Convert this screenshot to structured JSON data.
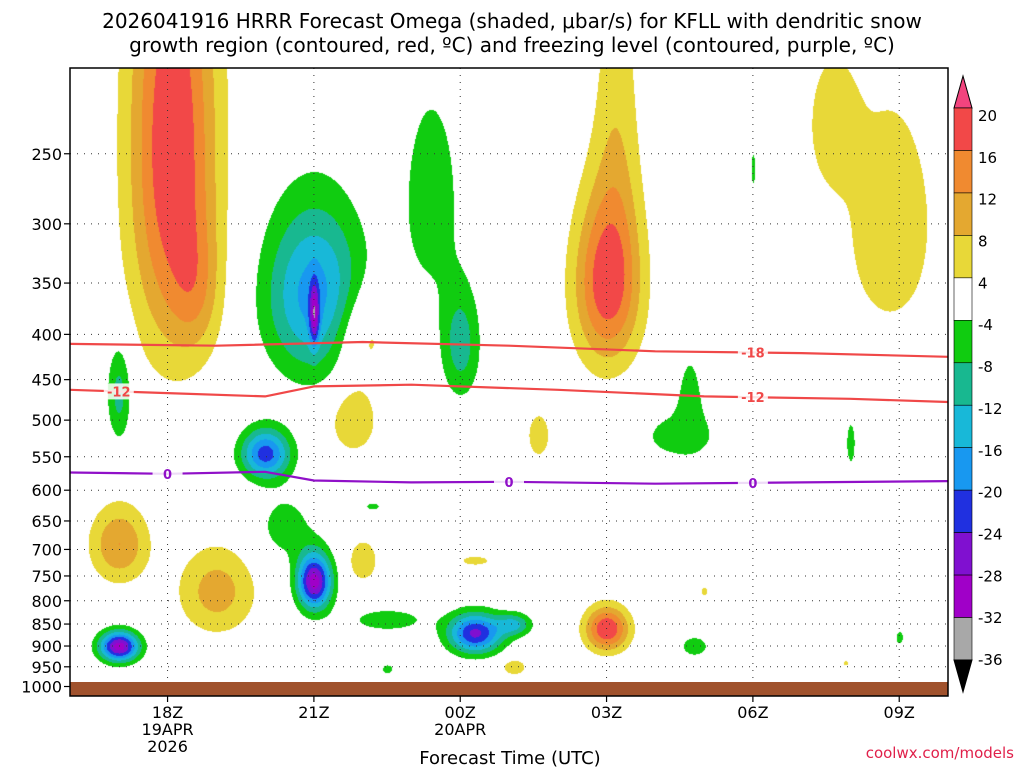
{
  "title_lines": [
    "2026041916 HRRR Forecast Omega (shaded, μbar/s) for KFLL with dendritic snow",
    "growth region (contoured, red, ºC) and freezing level (contoured, purple, ºC)"
  ],
  "credit": "coolwx.com/models",
  "chart_data": {
    "type": "time-height cross section",
    "title": "2026041916 HRRR Forecast Omega (shaded, μbar/s) for KFLL with dendritic snow growth region (contoured, red, ºC) and freezing level (contoured, purple, ºC)",
    "xlabel": "Forecast Time (UTC)",
    "ylabel": "",
    "x_range_hours": [
      0,
      18
    ],
    "pressure_range_mb": [
      1025,
      200
    ],
    "y_ticks": [
      250,
      300,
      350,
      400,
      450,
      500,
      550,
      600,
      650,
      700,
      750,
      800,
      850,
      900,
      950,
      1000
    ],
    "x_ticks": [
      {
        "hour": 2,
        "lines": [
          "18Z",
          "19APR",
          "2026"
        ]
      },
      {
        "hour": 5,
        "lines": [
          "21Z"
        ]
      },
      {
        "hour": 8,
        "lines": [
          "00Z",
          "20APR"
        ]
      },
      {
        "hour": 11,
        "lines": [
          "03Z"
        ]
      },
      {
        "hour": 14,
        "lines": [
          "06Z"
        ]
      },
      {
        "hour": 17,
        "lines": [
          "09Z"
        ]
      }
    ],
    "colorbar": {
      "labels": [
        "20",
        "16",
        "12",
        "8",
        "4",
        "-4",
        "-8",
        "-12",
        "-16",
        "-20",
        "-24",
        "-28",
        "-32",
        "-36"
      ],
      "colors": [
        "#f2447e",
        "#f24848",
        "#f08a30",
        "#e4a830",
        "#e8d838",
        "#ffffff",
        "#10cc10",
        "#18b890",
        "#18b8d8",
        "#1898f0",
        "#2030e0",
        "#8010d0",
        "#a000c8",
        "#a8a8a8",
        "#000000"
      ]
    },
    "omega_colors": {
      "pos4": "#e8d838",
      "pos8": "#e4a830",
      "pos12": "#f08a30",
      "pos16": "#f24848",
      "neg4": "#10cc10",
      "neg8": "#18b890",
      "neg12": "#18b8d8",
      "neg16": "#1898f0",
      "neg20": "#2030e0",
      "neg24": "#8010d0",
      "neg28": "#a000c8",
      "neg32": "#a8a8a8"
    },
    "omega_cells": [
      {
        "t": 2.1,
        "p": 245,
        "sx": 0.9,
        "sy": 160,
        "peak": 20
      },
      {
        "t": 2.6,
        "p": 355,
        "sx": 0.5,
        "sy": 60,
        "peak": 6
      },
      {
        "t": 1.0,
        "p": 465,
        "sx": 0.25,
        "sy": 60,
        "peak": -10
      },
      {
        "t": 5.0,
        "p": 360,
        "sx": 1.0,
        "sy": 80,
        "peak": -18
      },
      {
        "t": 5.0,
        "p": 380,
        "sx": 0.1,
        "sy": 30,
        "peak": -16
      },
      {
        "t": 7.4,
        "p": 280,
        "sx": 0.7,
        "sy": 90,
        "peak": -6
      },
      {
        "t": 8.0,
        "p": 410,
        "sx": 0.4,
        "sy": 60,
        "peak": -10
      },
      {
        "t": 4.0,
        "p": 545,
        "sx": 0.5,
        "sy": 35,
        "peak": -22
      },
      {
        "t": 4.4,
        "p": 660,
        "sx": 0.6,
        "sy": 60,
        "peak": -6
      },
      {
        "t": 5.0,
        "p": 760,
        "sx": 0.35,
        "sy": 55,
        "peak": -30
      },
      {
        "t": 6.5,
        "p": 840,
        "sx": 0.9,
        "sy": 30,
        "peak": -6
      },
      {
        "t": 8.3,
        "p": 870,
        "sx": 0.55,
        "sy": 45,
        "peak": -25
      },
      {
        "t": 9.1,
        "p": 850,
        "sx": 0.35,
        "sy": 25,
        "peak": -12
      },
      {
        "t": 1.0,
        "p": 900,
        "sx": 0.4,
        "sy": 35,
        "peak": -30
      },
      {
        "t": 11.0,
        "p": 350,
        "sx": 0.7,
        "sy": 80,
        "peak": 18
      },
      {
        "t": 11.2,
        "p": 230,
        "sx": 0.5,
        "sy": 120,
        "peak": 6
      },
      {
        "t": 9.6,
        "p": 520,
        "sx": 0.3,
        "sy": 40,
        "peak": 6
      },
      {
        "t": 12.5,
        "p": 520,
        "sx": 1.2,
        "sy": 50,
        "peak": -5
      },
      {
        "t": 12.7,
        "p": 460,
        "sx": 0.25,
        "sy": 50,
        "peak": -5
      },
      {
        "t": 14.0,
        "p": 260,
        "sx": 0.08,
        "sy": 20,
        "peak": -5
      },
      {
        "t": 16.8,
        "p": 300,
        "sx": 1.2,
        "sy": 120,
        "peak": 6
      },
      {
        "t": 15.6,
        "p": 230,
        "sx": 0.5,
        "sy": 40,
        "peak": 6
      },
      {
        "t": 6.0,
        "p": 400,
        "sx": 0.6,
        "sy": 50,
        "peak": 8
      },
      {
        "t": 5.8,
        "p": 500,
        "sx": 0.5,
        "sy": 45,
        "peak": 8
      },
      {
        "t": 1.0,
        "p": 690,
        "sx": 0.6,
        "sy": 70,
        "peak": 12
      },
      {
        "t": 3.0,
        "p": 780,
        "sx": 0.8,
        "sy": 90,
        "peak": 10
      },
      {
        "t": 11.0,
        "p": 860,
        "sx": 0.45,
        "sy": 50,
        "peak": 20
      },
      {
        "t": 8.3,
        "p": 720,
        "sx": 0.5,
        "sy": 15,
        "peak": 5
      },
      {
        "t": 9.1,
        "p": 950,
        "sx": 0.25,
        "sy": 20,
        "peak": 8
      },
      {
        "t": 12.8,
        "p": 900,
        "sx": 0.35,
        "sy": 30,
        "peak": -6
      },
      {
        "t": 16.0,
        "p": 530,
        "sx": 0.12,
        "sy": 40,
        "peak": -6
      },
      {
        "t": 17.0,
        "p": 880,
        "sx": 0.1,
        "sy": 20,
        "peak": -6
      },
      {
        "t": 15.9,
        "p": 940,
        "sx": 0.1,
        "sy": 10,
        "peak": 5
      },
      {
        "t": 13.0,
        "p": 780,
        "sx": 0.12,
        "sy": 15,
        "peak": 5
      },
      {
        "t": 6.0,
        "p": 720,
        "sx": 0.3,
        "sy": 40,
        "peak": 8
      },
      {
        "t": 6.2,
        "p": 625,
        "sx": 0.25,
        "sy": 10,
        "peak": -5
      },
      {
        "t": 6.5,
        "p": 955,
        "sx": 0.2,
        "sy": 20,
        "peak": -5
      }
    ],
    "contours": [
      {
        "label": "-18",
        "color": "#f04848",
        "t": [
          0,
          3,
          6,
          9,
          12,
          15,
          18
        ],
        "p": [
          410,
          412,
          408,
          412,
          418,
          420,
          424
        ],
        "label_at": [
          14
        ]
      },
      {
        "label": "-12",
        "color": "#f04848",
        "t": [
          0,
          2,
          4,
          5,
          7,
          10,
          13,
          16,
          18
        ],
        "p": [
          462,
          466,
          470,
          458,
          456,
          462,
          470,
          473,
          477
        ],
        "label_at": [
          1,
          14
        ]
      },
      {
        "label": "0",
        "color": "#9010c8",
        "t": [
          0,
          2,
          4,
          5,
          7,
          9,
          12,
          15,
          18
        ],
        "p": [
          573,
          575,
          572,
          585,
          588,
          587,
          590,
          588,
          586
        ],
        "label_at": [
          2,
          9,
          14
        ]
      }
    ]
  }
}
